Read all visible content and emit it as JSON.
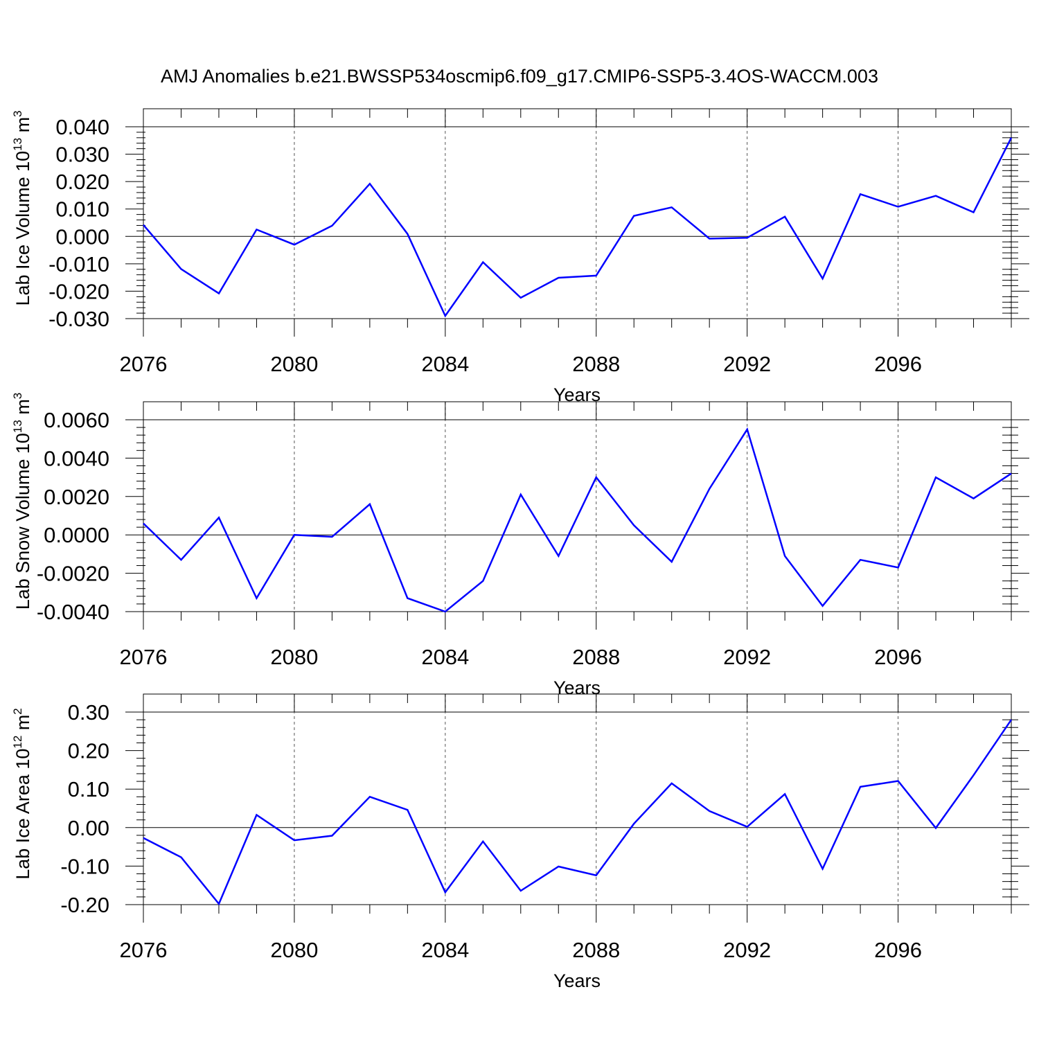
{
  "title": "AMJ Anomalies b.e21.BWSSP534oscmip6.f09_g17.CMIP6-SSP5-3.4OS-WACCM.003",
  "chart_data": [
    {
      "type": "line",
      "ylabel_main": "Lab Ice Volume 10",
      "ylabel_exp": "13",
      "ylabel_unit": " m",
      "ylabel_unit_exp": "3",
      "xlabel": "Years",
      "xlim": [
        2076,
        2099
      ],
      "ylim": [
        -0.03,
        0.04
      ],
      "xticks": [
        2076,
        2080,
        2084,
        2088,
        2092,
        2096
      ],
      "xtick_labels": [
        "2076",
        "2080",
        "2084",
        "2088",
        "2092",
        "2096"
      ],
      "yticks": [
        -0.03,
        -0.02,
        -0.01,
        0.0,
        0.01,
        0.02,
        0.03,
        0.04
      ],
      "ytick_labels": [
        "-0.030",
        "-0.020",
        "-0.010",
        "0.000",
        "0.010",
        "0.020",
        "0.030",
        "0.040"
      ],
      "series": [
        {
          "name": "Lab Ice Volume",
          "color": "#0000ff",
          "x": [
            2076,
            2077,
            2078,
            2079,
            2080,
            2081,
            2082,
            2083,
            2084,
            2085,
            2086,
            2087,
            2088,
            2089,
            2090,
            2091,
            2092,
            2093,
            2094,
            2095,
            2096,
            2097,
            2098,
            2099
          ],
          "values": [
            0.0042,
            -0.0119,
            -0.0208,
            0.0025,
            -0.003,
            0.0039,
            0.0192,
            0.0009,
            -0.029,
            -0.0094,
            -0.0224,
            -0.0151,
            -0.0143,
            0.0075,
            0.0106,
            -0.0008,
            -0.0005,
            0.0072,
            -0.0154,
            0.0154,
            0.0108,
            0.0148,
            0.0088,
            0.036
          ]
        }
      ]
    },
    {
      "type": "line",
      "ylabel_main": "Lab Snow Volume 10",
      "ylabel_exp": "13",
      "ylabel_unit": " m",
      "ylabel_unit_exp": "3",
      "xlabel": "Years",
      "xlim": [
        2076,
        2099
      ],
      "ylim": [
        -0.004,
        0.006
      ],
      "xticks": [
        2076,
        2080,
        2084,
        2088,
        2092,
        2096
      ],
      "xtick_labels": [
        "2076",
        "2080",
        "2084",
        "2088",
        "2092",
        "2096"
      ],
      "yticks": [
        -0.004,
        -0.002,
        0.0,
        0.002,
        0.004,
        0.006
      ],
      "ytick_labels": [
        "-0.0040",
        "-0.0020",
        "0.0000",
        "0.0020",
        "0.0040",
        "0.0060"
      ],
      "series": [
        {
          "name": "Lab Snow Volume",
          "color": "#0000ff",
          "x": [
            2076,
            2077,
            2078,
            2079,
            2080,
            2081,
            2082,
            2083,
            2084,
            2085,
            2086,
            2087,
            2088,
            2089,
            2090,
            2091,
            2092,
            2093,
            2094,
            2095,
            2096,
            2097,
            2098,
            2099
          ],
          "values": [
            0.0006,
            -0.0013,
            0.0009,
            -0.0033,
            0.0,
            -0.0001,
            0.0016,
            -0.0033,
            -0.004,
            -0.0024,
            0.0021,
            -0.0011,
            0.003,
            0.0005,
            -0.0014,
            0.0024,
            0.0055,
            -0.0011,
            -0.0037,
            -0.0013,
            -0.0017,
            0.003,
            0.0019,
            0.0032
          ]
        }
      ]
    },
    {
      "type": "line",
      "ylabel_main": "Lab Ice Area 10",
      "ylabel_exp": "12",
      "ylabel_unit": " m",
      "ylabel_unit_exp": "2",
      "xlabel": "Years",
      "xlim": [
        2076,
        2099
      ],
      "ylim": [
        -0.2,
        0.3
      ],
      "xticks": [
        2076,
        2080,
        2084,
        2088,
        2092,
        2096
      ],
      "xtick_labels": [
        "2076",
        "2080",
        "2084",
        "2088",
        "2092",
        "2096"
      ],
      "yticks": [
        -0.2,
        -0.1,
        0.0,
        0.1,
        0.2,
        0.3
      ],
      "ytick_labels": [
        "-0.20",
        "-0.10",
        "0.00",
        "0.10",
        "0.20",
        "0.30"
      ],
      "series": [
        {
          "name": "Lab Ice Area",
          "color": "#0000ff",
          "x": [
            2076,
            2077,
            2078,
            2079,
            2080,
            2081,
            2082,
            2083,
            2084,
            2085,
            2086,
            2087,
            2088,
            2089,
            2090,
            2091,
            2092,
            2093,
            2094,
            2095,
            2096,
            2097,
            2098,
            2099
          ],
          "values": [
            -0.027,
            -0.077,
            -0.198,
            0.033,
            -0.033,
            -0.021,
            0.08,
            0.046,
            -0.168,
            -0.036,
            -0.164,
            -0.101,
            -0.124,
            0.01,
            0.115,
            0.043,
            0.002,
            0.087,
            -0.107,
            0.106,
            0.121,
            -0.001,
            0.136,
            0.28
          ]
        }
      ]
    }
  ]
}
